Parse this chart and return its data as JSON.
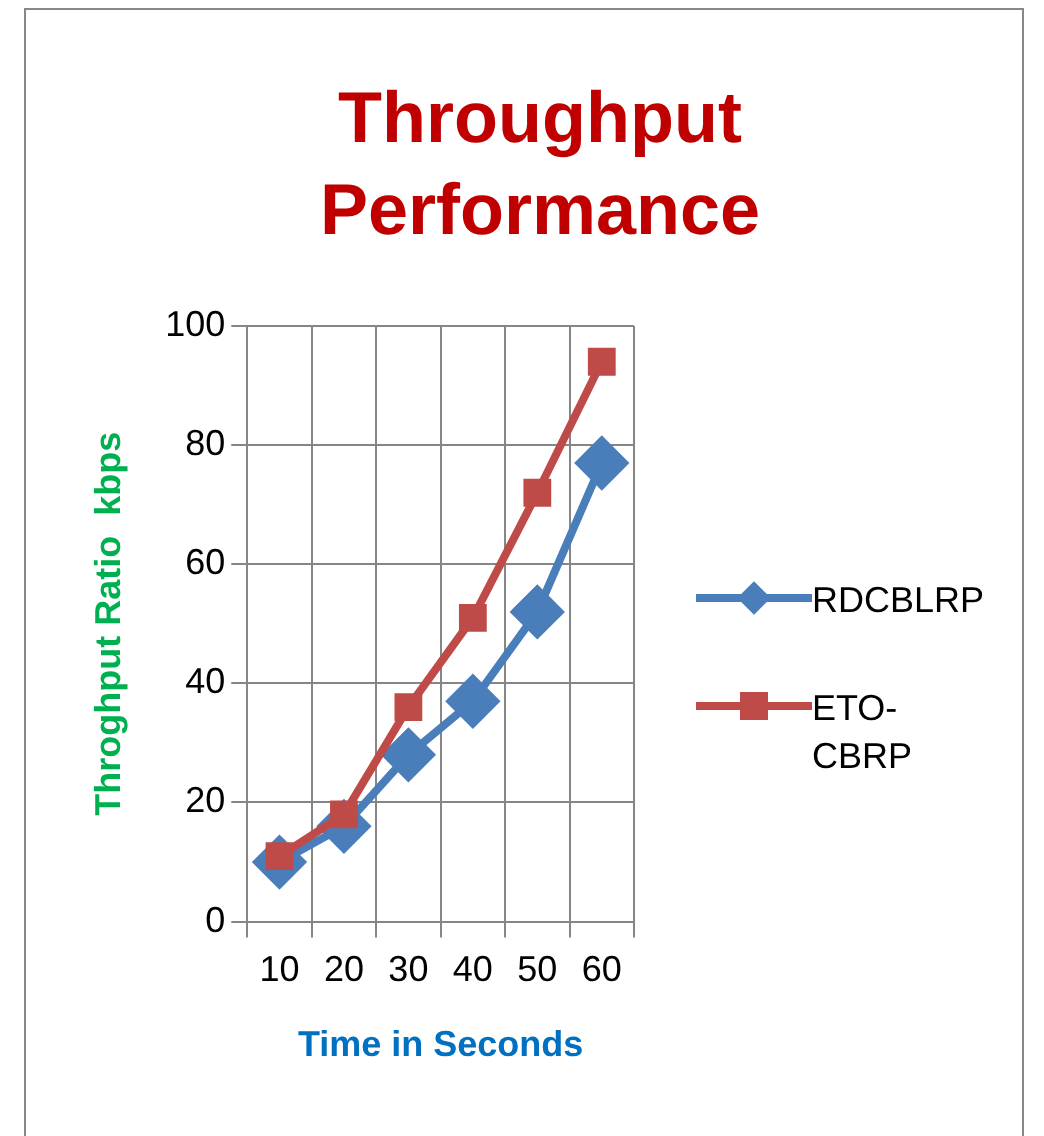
{
  "chart_data": {
    "type": "line",
    "title": "Throughput Performance",
    "xlabel": "Time in Seconds",
    "ylabel": "Throghput Ratio  kbps",
    "categories": [
      "10",
      "20",
      "30",
      "40",
      "50",
      "60"
    ],
    "series": [
      {
        "name": "RDCBLRP",
        "color": "#4a7ebb",
        "marker": "diamond",
        "values": [
          10,
          16,
          28,
          37,
          52,
          77
        ]
      },
      {
        "name": "ETO-CBRP",
        "color": "#be4b48",
        "marker": "square",
        "values": [
          11,
          18,
          36,
          51,
          72,
          94
        ]
      }
    ],
    "ylim": [
      0,
      100
    ],
    "yticks": [
      0,
      20,
      40,
      60,
      80,
      100
    ],
    "grid": true,
    "legend": "right"
  }
}
